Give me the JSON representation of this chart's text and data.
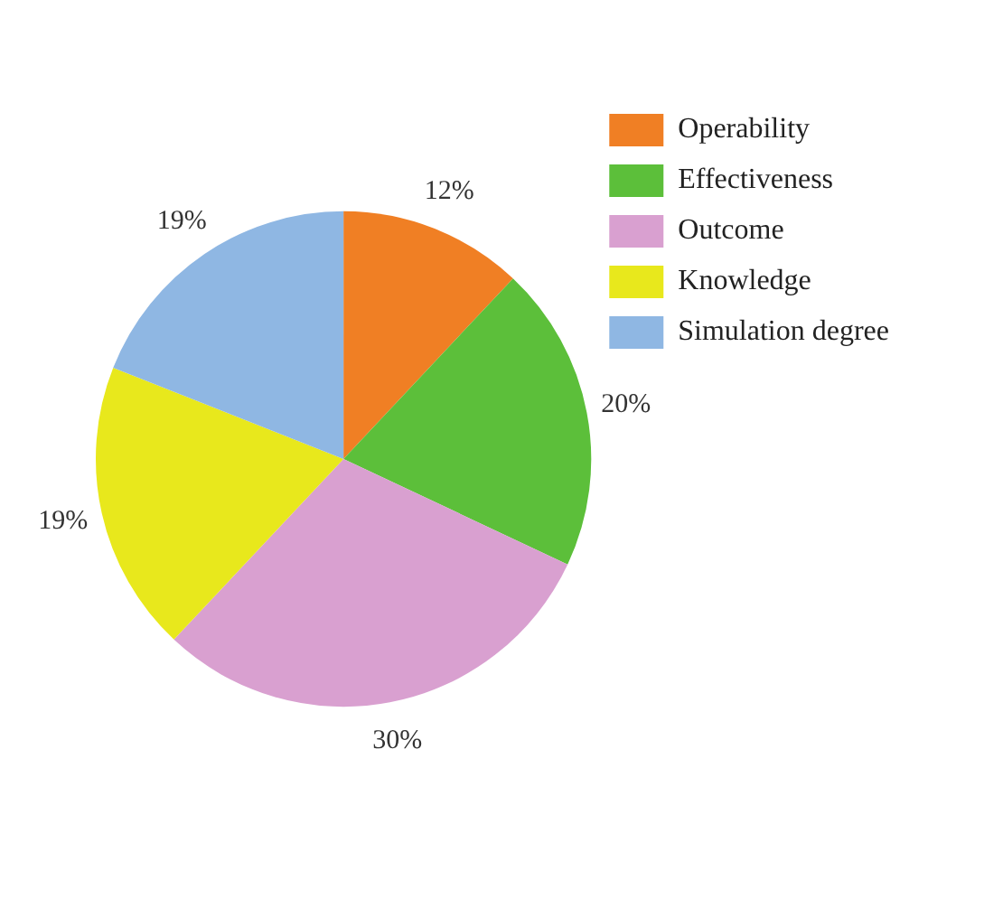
{
  "chart_data": {
    "type": "pie",
    "categories": [
      "Operability",
      "Effectiveness",
      "Outcome",
      "Knowledge",
      "Simulation degree"
    ],
    "values": [
      12,
      20,
      30,
      19,
      19
    ],
    "colors": [
      "#f07f24",
      "#5cbf3a",
      "#d9a0d0",
      "#e8e81c",
      "#8fb7e3"
    ],
    "value_labels": [
      "12%",
      "20%",
      "30%",
      "19%",
      "19%"
    ],
    "legend": "top right"
  }
}
